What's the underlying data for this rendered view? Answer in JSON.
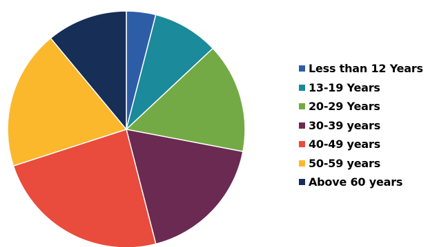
{
  "chart_data": {
    "type": "pie",
    "title": "",
    "legend_position": "right",
    "slices": [
      {
        "label": "Less than 12 Years",
        "value": 4,
        "color": "#2E5DA8"
      },
      {
        "label": "13-19 Years",
        "value": 9,
        "color": "#1B8A9A"
      },
      {
        "label": "20-29 Years",
        "value": 15,
        "color": "#74AA45"
      },
      {
        "label": "30-39 years",
        "value": 18,
        "color": "#6B2A52"
      },
      {
        "label": "40-49 years",
        "value": 24,
        "color": "#E94B3C"
      },
      {
        "label": "50-59 years",
        "value": 19,
        "color": "#FBB82D"
      },
      {
        "label": "Above 60 years",
        "value": 11,
        "color": "#172E56"
      }
    ]
  }
}
